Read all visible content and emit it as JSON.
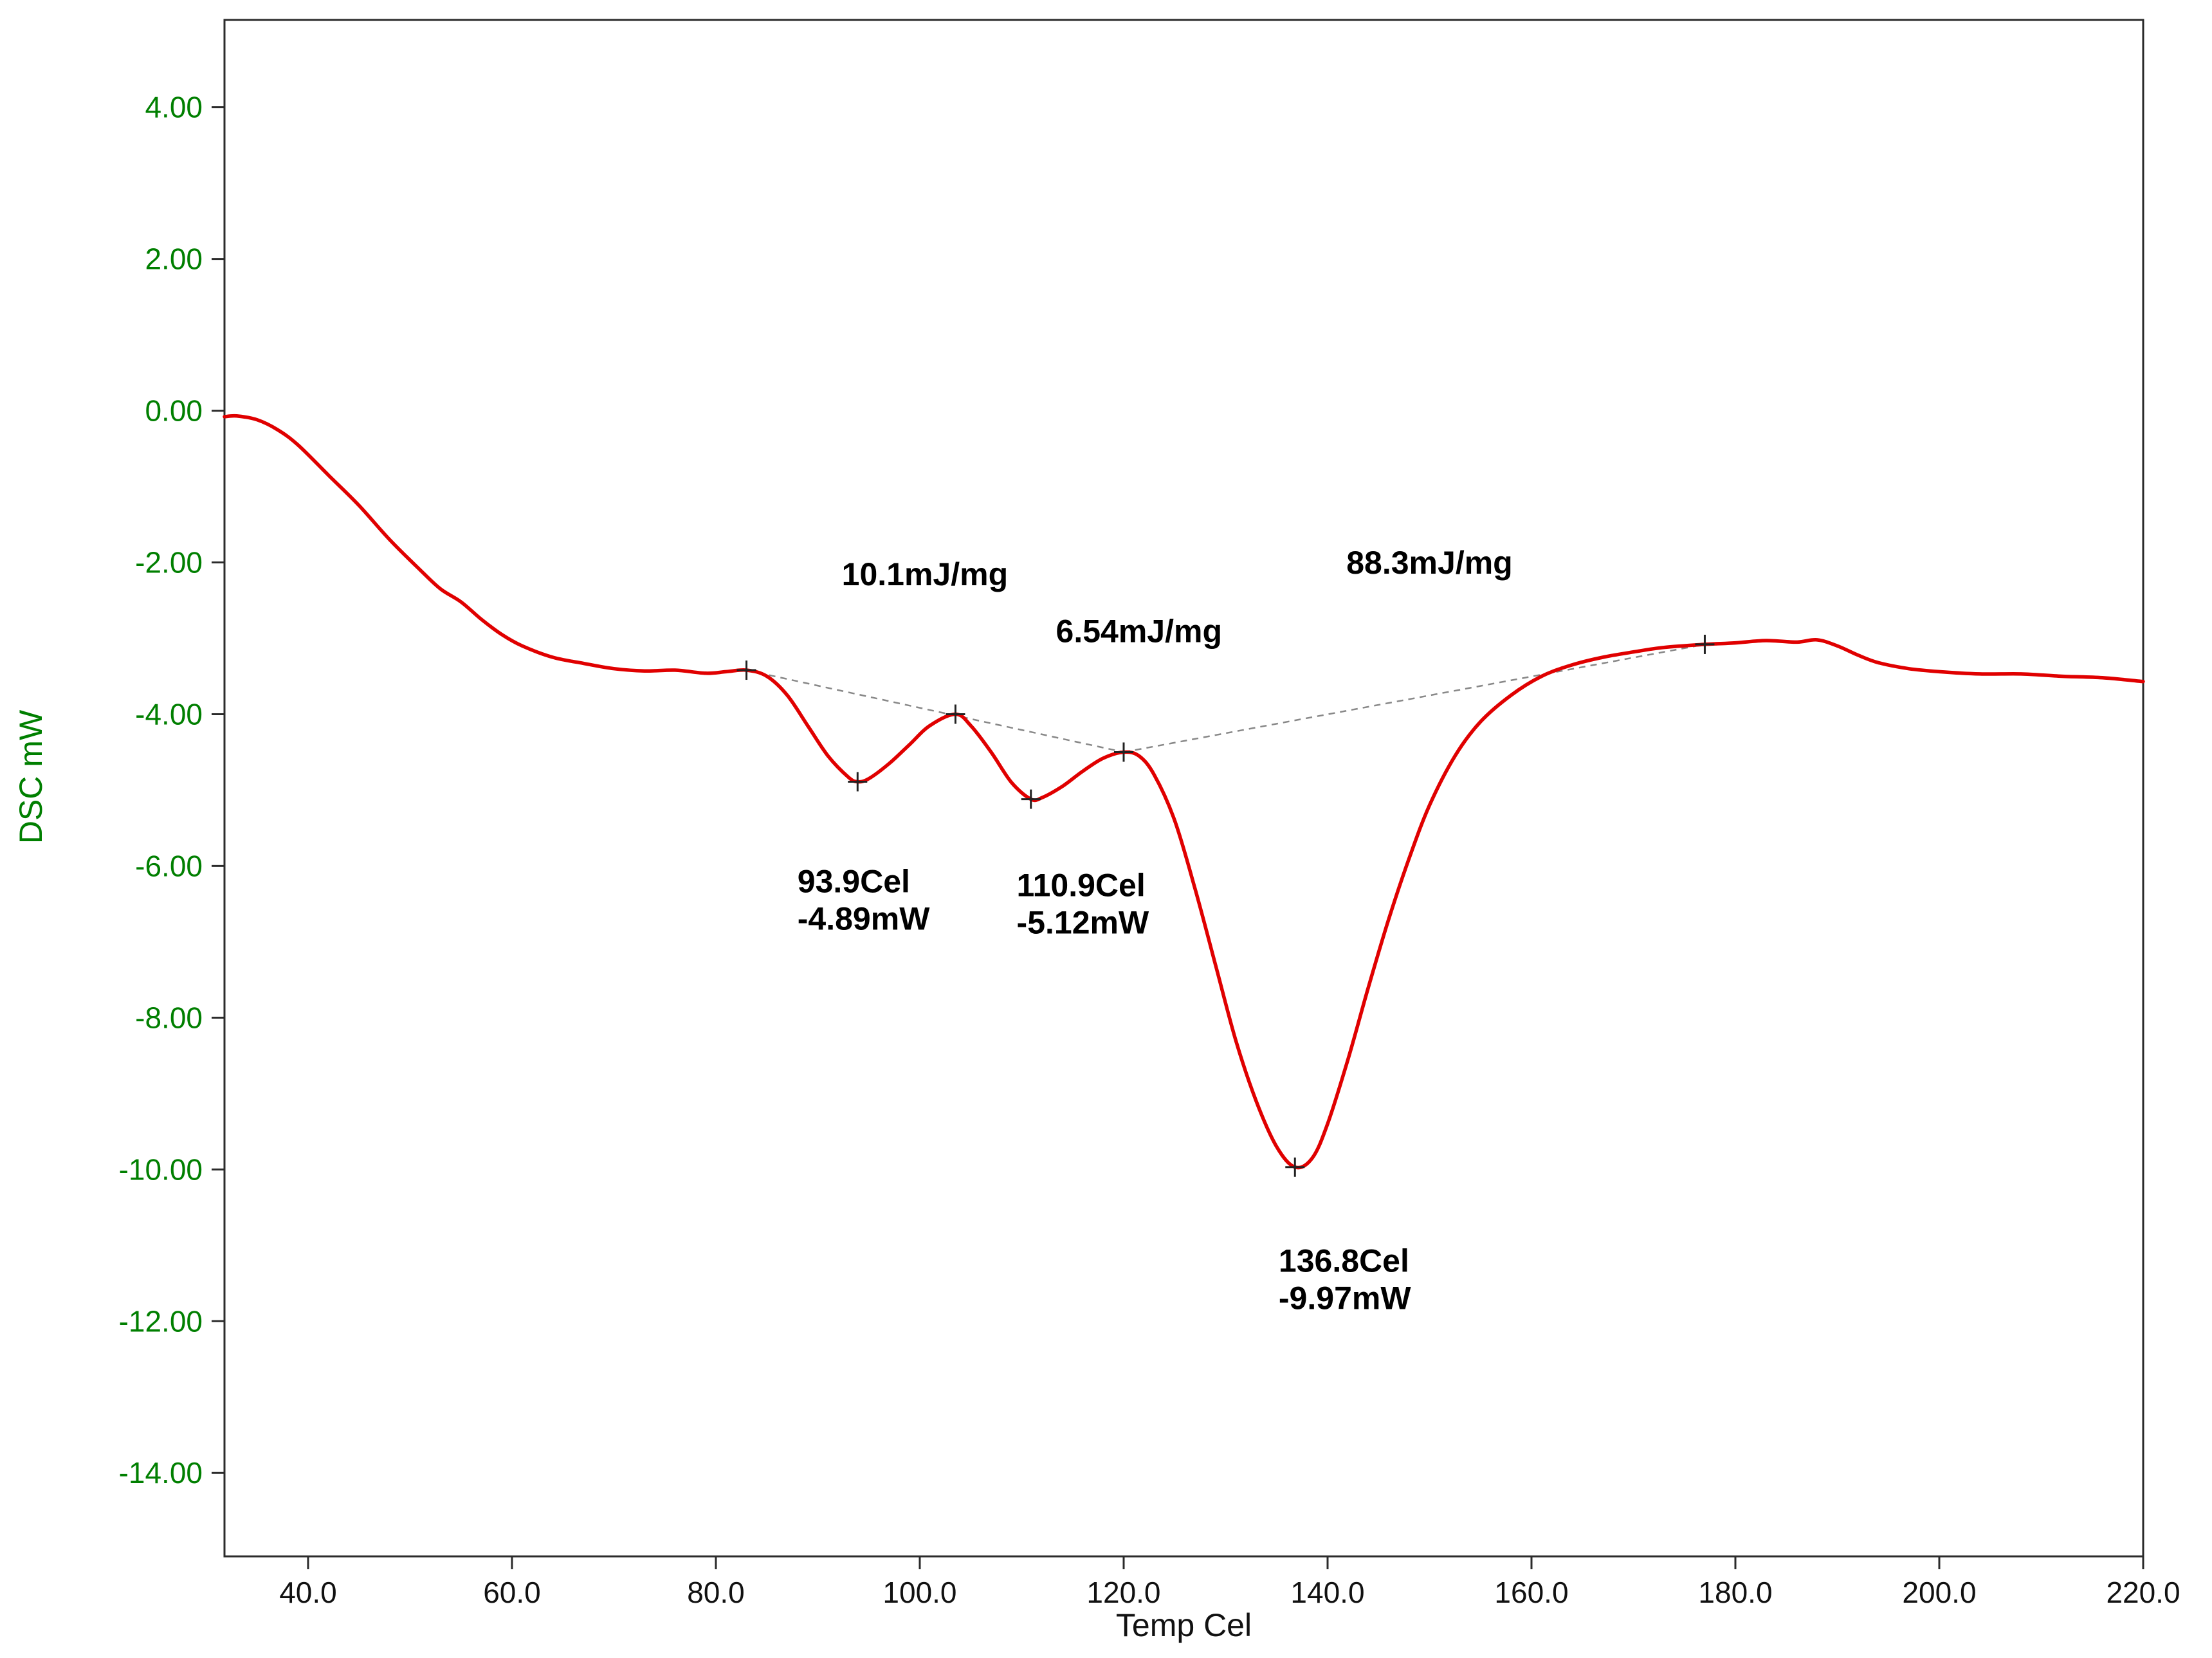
{
  "chart_data": {
    "type": "line",
    "title": "",
    "xlabel": "Temp Cel",
    "ylabel": "DSC mW",
    "xlim": [
      31.8,
      220
    ],
    "ylim": [
      -15.1,
      5.15
    ],
    "grid": false,
    "legend": false,
    "x_ticks": [
      40,
      60,
      80,
      100,
      120,
      140,
      160,
      180,
      200,
      220
    ],
    "x_tick_labels": [
      "40.0",
      "60.0",
      "80.0",
      "100.0",
      "120.0",
      "140.0",
      "160.0",
      "180.0",
      "200.0",
      "220.0"
    ],
    "y_ticks": [
      4,
      2,
      0,
      -2,
      -4,
      -6,
      -8,
      -10,
      -12,
      -14
    ],
    "y_tick_labels": [
      "4.00",
      "2.00",
      "0.00",
      "-2.00",
      "-4.00",
      "-6.00",
      "-8.00",
      "-10.00",
      "-12.00",
      "-14.00"
    ],
    "series": [
      {
        "name": "DSC",
        "color": "#e00000",
        "points": [
          [
            31.8,
            -0.08
          ],
          [
            33,
            -0.07
          ],
          [
            35,
            -0.12
          ],
          [
            37,
            -0.25
          ],
          [
            39,
            -0.45
          ],
          [
            42,
            -0.85
          ],
          [
            45,
            -1.25
          ],
          [
            48,
            -1.7
          ],
          [
            51,
            -2.1
          ],
          [
            53,
            -2.35
          ],
          [
            55,
            -2.52
          ],
          [
            57,
            -2.75
          ],
          [
            59,
            -2.95
          ],
          [
            61,
            -3.1
          ],
          [
            64,
            -3.25
          ],
          [
            67,
            -3.33
          ],
          [
            70,
            -3.4
          ],
          [
            73,
            -3.43
          ],
          [
            76,
            -3.42
          ],
          [
            79,
            -3.46
          ],
          [
            81,
            -3.44
          ],
          [
            83,
            -3.42
          ],
          [
            85,
            -3.5
          ],
          [
            87,
            -3.75
          ],
          [
            89,
            -4.15
          ],
          [
            91,
            -4.55
          ],
          [
            93,
            -4.83
          ],
          [
            93.9,
            -4.89
          ],
          [
            95,
            -4.85
          ],
          [
            97,
            -4.65
          ],
          [
            99,
            -4.4
          ],
          [
            101,
            -4.15
          ],
          [
            103.5,
            -4.0
          ],
          [
            105,
            -4.15
          ],
          [
            107,
            -4.5
          ],
          [
            109,
            -4.9
          ],
          [
            110.9,
            -5.12
          ],
          [
            112,
            -5.1
          ],
          [
            114,
            -4.95
          ],
          [
            116,
            -4.75
          ],
          [
            118,
            -4.58
          ],
          [
            120,
            -4.5
          ],
          [
            121.5,
            -4.55
          ],
          [
            123,
            -4.8
          ],
          [
            125,
            -5.4
          ],
          [
            127,
            -6.3
          ],
          [
            129,
            -7.3
          ],
          [
            131,
            -8.3
          ],
          [
            133,
            -9.1
          ],
          [
            135,
            -9.7
          ],
          [
            136.8,
            -9.97
          ],
          [
            138.5,
            -9.85
          ],
          [
            140,
            -9.4
          ],
          [
            142,
            -8.55
          ],
          [
            144,
            -7.6
          ],
          [
            146,
            -6.7
          ],
          [
            148,
            -5.9
          ],
          [
            150,
            -5.2
          ],
          [
            152.5,
            -4.55
          ],
          [
            155,
            -4.1
          ],
          [
            158,
            -3.75
          ],
          [
            161,
            -3.5
          ],
          [
            164,
            -3.35
          ],
          [
            167,
            -3.25
          ],
          [
            170,
            -3.18
          ],
          [
            173,
            -3.12
          ],
          [
            177,
            -3.08
          ],
          [
            180,
            -3.06
          ],
          [
            183,
            -3.03
          ],
          [
            186,
            -3.05
          ],
          [
            188,
            -3.02
          ],
          [
            190,
            -3.1
          ],
          [
            192,
            -3.22
          ],
          [
            194,
            -3.32
          ],
          [
            197,
            -3.4
          ],
          [
            200,
            -3.44
          ],
          [
            204,
            -3.47
          ],
          [
            208,
            -3.47
          ],
          [
            212,
            -3.5
          ],
          [
            216,
            -3.52
          ],
          [
            220,
            -3.57
          ]
        ]
      }
    ],
    "baselines": [
      {
        "from": [
          83,
          -3.42
        ],
        "to": [
          120,
          -4.5
        ]
      },
      {
        "from": [
          120,
          -4.5
        ],
        "to": [
          177,
          -3.08
        ]
      }
    ],
    "markers": [
      [
        83,
        -3.42
      ],
      [
        93.9,
        -4.89
      ],
      [
        103.5,
        -4.0
      ],
      [
        110.9,
        -5.12
      ],
      [
        120,
        -4.5
      ],
      [
        136.8,
        -9.97
      ],
      [
        177,
        -3.08
      ]
    ],
    "annotations": [
      {
        "lines": [
          "10.1mJ/mg"
        ],
        "x": 100.5,
        "y": -2.3,
        "anchor": "middle"
      },
      {
        "lines": [
          "6.54mJ/mg"
        ],
        "x": 121.5,
        "y": -3.05,
        "anchor": "middle"
      },
      {
        "lines": [
          "88.3mJ/mg"
        ],
        "x": 150,
        "y": -2.15,
        "anchor": "middle"
      },
      {
        "lines": [
          "93.9Cel",
          "-4.89mW"
        ],
        "x": 88,
        "y": -6.35,
        "anchor": "start"
      },
      {
        "lines": [
          "110.9Cel",
          "-5.12mW"
        ],
        "x": 109.5,
        "y": -6.4,
        "anchor": "start"
      },
      {
        "lines": [
          "136.8Cel",
          "-9.97mW"
        ],
        "x": 135.2,
        "y": -11.35,
        "anchor": "start"
      }
    ],
    "colors": {
      "curve": "#e00000",
      "axis_title_x": "#111111",
      "axis_title_y": "#007f00",
      "tick_label_x": "#111111",
      "tick_label_y": "#007f00",
      "baseline": "#888888",
      "marker": "#222222",
      "annotation": "#000000",
      "frame": "#2b2b2b"
    }
  }
}
